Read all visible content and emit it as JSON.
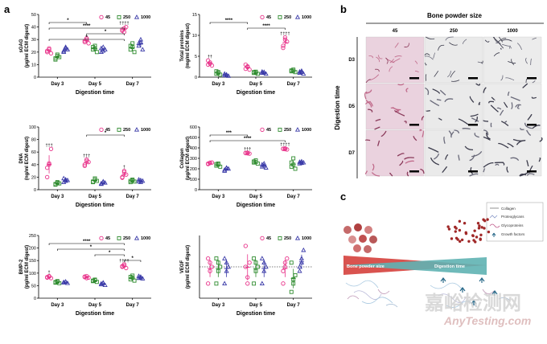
{
  "panel_letters": {
    "a": "a",
    "b": "b",
    "c": "c"
  },
  "colors": {
    "s45": "#e8338a",
    "s250": "#2e8b2e",
    "s1000": "#3a3aa8",
    "wedge_red": "#d9534f",
    "wedge_teal": "#5fb3b3"
  },
  "chart_data": [
    {
      "id": "sgag",
      "type": "scatter",
      "ylabel": "sGAG",
      "ylabel2": "(μg/ml ECM digest)",
      "xlabel": "Digestion time",
      "categories": [
        "Day 3",
        "Day 5",
        "Day 7"
      ],
      "ylim": [
        0,
        50
      ],
      "yticks": [
        "0",
        "10",
        "20",
        "30",
        "40",
        "50"
      ],
      "legend": [
        "45",
        "250",
        "1000"
      ],
      "series": [
        {
          "name": "45",
          "points": [
            [
              20,
              22,
              19,
              21,
              23
            ],
            [
              28,
              30,
              27,
              29,
              31
            ],
            [
              38,
              36,
              40,
              37,
              39
            ]
          ]
        },
        {
          "name": "250",
          "points": [
            [
              15,
              17,
              16,
              14,
              18
            ],
            [
              22,
              25,
              20,
              24,
              23
            ],
            [
              22,
              27,
              20,
              25,
              24
            ]
          ]
        },
        {
          "name": "1000",
          "points": [
            [
              20,
              23,
              22,
              21,
              24
            ],
            [
              20,
              24,
              22,
              23,
              21
            ],
            [
              25,
              30,
              22,
              27,
              28
            ]
          ]
        }
      ],
      "sig_brackets": [
        {
          "from": [
            0,
            0
          ],
          "to": [
            1,
            0
          ],
          "label": "*"
        },
        {
          "from": [
            0,
            0
          ],
          "to": [
            2,
            0
          ],
          "label": "****"
        },
        {
          "from": [
            1,
            0
          ],
          "to": [
            2,
            0
          ],
          "label": "*"
        },
        {
          "from": [
            0,
            0
          ],
          "to": [
            2,
            0
          ],
          "label": "*"
        }
      ],
      "daggers": [
        {
          "cat": 2,
          "series": 0,
          "label": "††††"
        }
      ]
    },
    {
      "id": "protein",
      "type": "scatter",
      "ylabel": "Total proteins",
      "ylabel2": "(mg/ml ECM digest)",
      "xlabel": "Digestion time",
      "categories": [
        "Day 3",
        "Day 5",
        "Day 7"
      ],
      "ylim": [
        0,
        15
      ],
      "yticks": [
        "0",
        "5",
        "10",
        "15"
      ],
      "legend": [
        "45",
        "250",
        "1000"
      ],
      "series": [
        {
          "name": "45",
          "points": [
            [
              3.0,
              3.5,
              2.8,
              4.0,
              3.2
            ],
            [
              2.0,
              2.6,
              1.8,
              3.0,
              2.4
            ],
            [
              7.5,
              9.0,
              8.5,
              7.0,
              9.5
            ]
          ]
        },
        {
          "name": "250",
          "points": [
            [
              0.8,
              1.2,
              0.6,
              1.4,
              1.0
            ],
            [
              1.0,
              1.3,
              0.8,
              1.2,
              1.1
            ],
            [
              1.4,
              1.8,
              1.2,
              1.6,
              1.5
            ]
          ]
        },
        {
          "name": "1000",
          "points": [
            [
              0.4,
              0.6,
              0.3,
              0.8,
              0.5
            ],
            [
              1.0,
              1.2,
              0.8,
              1.3,
              1.1
            ],
            [
              1.0,
              1.5,
              0.8,
              1.3,
              1.2
            ]
          ]
        }
      ],
      "sig_brackets": [
        {
          "from": [
            0,
            0
          ],
          "to": [
            1,
            0
          ],
          "label": "****"
        },
        {
          "from": [
            1,
            0
          ],
          "to": [
            2,
            0
          ],
          "label": "****"
        }
      ],
      "daggers": [
        {
          "cat": 0,
          "series": 0,
          "label": "††"
        },
        {
          "cat": 2,
          "series": 0,
          "label": "††††"
        }
      ]
    },
    {
      "id": "dna",
      "type": "scatter",
      "ylabel": "DNA",
      "ylabel2": "(ng/ml ECM digest)",
      "xlabel": "Digestion time",
      "categories": [
        "Day 3",
        "Day 5",
        "Day 7"
      ],
      "ylim": [
        0,
        100
      ],
      "yticks": [
        "0",
        "20",
        "40",
        "60",
        "80",
        "100"
      ],
      "legend": [
        "45",
        "250",
        "1000"
      ],
      "series": [
        {
          "name": "45",
          "points": [
            [
              20,
              40,
              65,
              35,
              42
            ],
            [
              40,
              48,
              44,
              38,
              46
            ],
            [
              20,
              28,
              24,
              19,
              30
            ]
          ]
        },
        {
          "name": "250",
          "points": [
            [
              8,
              12,
              10,
              9,
              11
            ],
            [
              12,
              16,
              14,
              13,
              18
            ],
            [
              12,
              15,
              13,
              14,
              16
            ]
          ]
        },
        {
          "name": "1000",
          "points": [
            [
              12,
              16,
              15,
              18,
              14
            ],
            [
              10,
              12,
              11,
              9,
              13
            ],
            [
              13,
              15,
              14,
              16,
              12
            ]
          ]
        }
      ],
      "sig_brackets": [
        {
          "from": [
            1,
            0
          ],
          "to": [
            2,
            0
          ],
          "label": "*"
        }
      ],
      "daggers": [
        {
          "cat": 0,
          "series": 0,
          "label": "†††"
        },
        {
          "cat": 1,
          "series": 0,
          "label": "†††"
        },
        {
          "cat": 2,
          "series": 0,
          "label": "†"
        }
      ]
    },
    {
      "id": "collagen",
      "type": "scatter",
      "ylabel": "Collagen",
      "ylabel2": "(μg/ml ECM digest)",
      "xlabel": "Digestion time",
      "categories": [
        "Day 3",
        "Day 5",
        "Day 7"
      ],
      "ylim": [
        0,
        600
      ],
      "yticks": [
        "0",
        "100",
        "200",
        "300",
        "400",
        "500",
        "600"
      ],
      "legend": [
        "45",
        "250",
        "1000"
      ],
      "series": [
        {
          "name": "45",
          "points": [
            [
              250,
              255,
              260,
              245,
              258
            ],
            [
              350,
              355,
              345,
              352,
              348
            ],
            [
              390,
              395,
              385,
              392,
              388
            ]
          ]
        },
        {
          "name": "250",
          "points": [
            [
              230,
              250,
              220,
              245,
              240
            ],
            [
              260,
              280,
              250,
              270,
              265
            ],
            [
              220,
              300,
              200,
              260,
              240
            ]
          ]
        },
        {
          "name": "1000",
          "points": [
            [
              190,
              210,
              200,
              180,
              205
            ],
            [
              220,
              250,
              210,
              240,
              230
            ],
            [
              250,
              270,
              260,
              265,
              255
            ]
          ]
        }
      ],
      "sig_brackets": [
        {
          "from": [
            0,
            0
          ],
          "to": [
            1,
            0
          ],
          "label": "***"
        },
        {
          "from": [
            0,
            0
          ],
          "to": [
            2,
            0
          ],
          "label": "****"
        }
      ],
      "daggers": [
        {
          "cat": 1,
          "series": 0,
          "label": "†††"
        },
        {
          "cat": 2,
          "series": 0,
          "label": "††††"
        }
      ]
    },
    {
      "id": "bmp2",
      "type": "scatter",
      "ylabel": "BMP-2",
      "ylabel2": "(pg/ml ECM digest)",
      "xlabel": "Digestion time",
      "categories": [
        "Day 3",
        "Day 5",
        "Day 7"
      ],
      "ylim": [
        0,
        250
      ],
      "yticks": [
        "0",
        "50",
        "100",
        "150",
        "200",
        "250"
      ],
      "legend": [
        "45",
        "250",
        "1000"
      ],
      "series": [
        {
          "name": "45",
          "points": [
            [
              82,
              86,
              80,
              84,
              88
            ],
            [
              84,
              88,
              82,
              86,
              80
            ],
            [
              125,
              130,
              120,
              128,
              135
            ]
          ]
        },
        {
          "name": "250",
          "points": [
            [
              62,
              66,
              60,
              64,
              68
            ],
            [
              68,
              72,
              65,
              70,
              74
            ],
            [
              75,
              90,
              70,
              85,
              82
            ]
          ]
        },
        {
          "name": "1000",
          "points": [
            [
              62,
              66,
              60,
              64,
              65
            ],
            [
              55,
              60,
              52,
              58,
              62
            ],
            [
              80,
              85,
              78,
              88,
              82
            ]
          ]
        }
      ],
      "sig_brackets": [
        {
          "from": [
            0,
            0
          ],
          "to": [
            2,
            0
          ],
          "label": "****"
        },
        {
          "from": [
            0,
            1
          ],
          "to": [
            2,
            0
          ],
          "label": "*"
        },
        {
          "from": [
            1,
            1
          ],
          "to": [
            2,
            0
          ],
          "label": "*"
        },
        {
          "from": [
            2,
            0
          ],
          "to": [
            2,
            2
          ],
          "label": "*"
        }
      ],
      "daggers": [
        {
          "cat": 0,
          "series": 0,
          "label": "†"
        },
        {
          "cat": 2,
          "series": 0,
          "label": "††††"
        }
      ]
    },
    {
      "id": "vegf",
      "type": "scatter",
      "ylabel": "VEGF",
      "ylabel2": "(pg/ml ECM digest)",
      "xlabel": "Digestion time",
      "categories": [
        "Day 3",
        "Day 5",
        "Day 7"
      ],
      "ylim": [
        -15,
        15
      ],
      "yticks": [],
      "legend": [
        "45",
        "250",
        "1000"
      ],
      "zero_line": true,
      "series": [
        {
          "name": "45",
          "points": [
            [
              -8,
              2,
              0,
              4,
              -2
            ],
            [
              10,
              -8,
              2,
              0,
              -5
            ],
            [
              -8,
              0,
              4,
              -2,
              2
            ]
          ]
        },
        {
          "name": "250",
          "points": [
            [
              -8,
              2,
              0,
              4,
              -2
            ],
            [
              -8,
              2,
              0,
              4,
              -2
            ],
            [
              -12,
              -6,
              -4,
              2,
              -8
            ]
          ]
        },
        {
          "name": "1000",
          "points": [
            [
              -8,
              2,
              0,
              4,
              -2
            ],
            [
              -8,
              2,
              0,
              4,
              -2
            ],
            [
              -2,
              4,
              8,
              0,
              2
            ]
          ]
        }
      ],
      "sig_brackets": [],
      "daggers": []
    }
  ],
  "panel_b": {
    "title": "Bone powder size",
    "columns": [
      "45",
      "250",
      "1000"
    ],
    "rows": [
      "D3",
      "D5",
      "D7"
    ],
    "row_axis_label": "Digestion time"
  },
  "panel_c": {
    "legend": [
      "Collagen",
      "Proteoglycans",
      "Glycoproteins",
      "Growth factors"
    ],
    "wedge_left_label": "Bone powder  size",
    "wedge_right_label": "Digestion time"
  },
  "watermark": {
    "line1": "嘉峪检测网",
    "line2": "AnyTesting.com"
  }
}
